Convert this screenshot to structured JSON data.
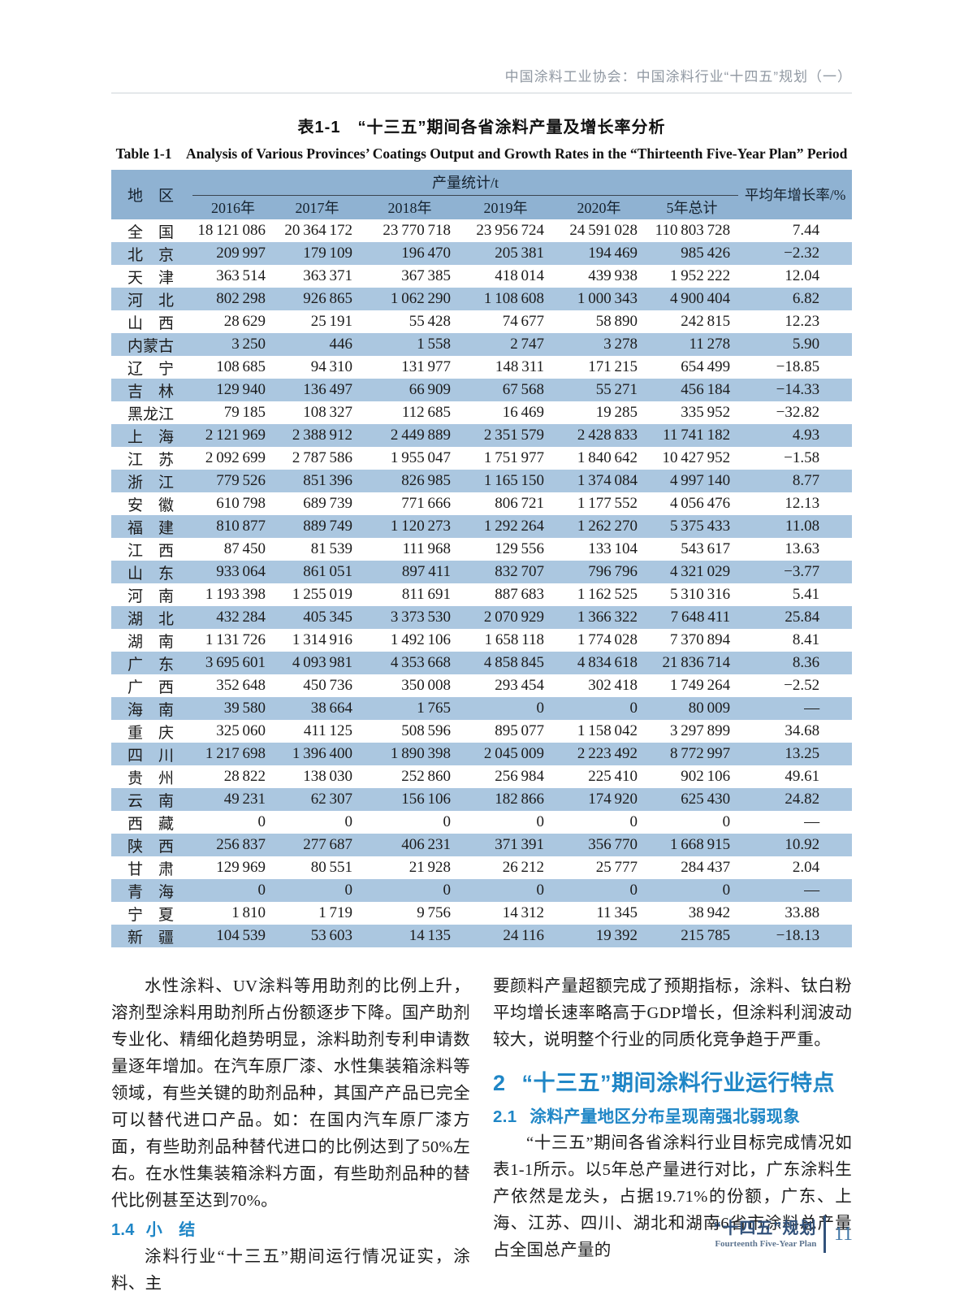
{
  "colors": {
    "band": "#8fb2d2",
    "stripe": "#abc7e0",
    "heading-blue": "#1f86c6",
    "footer-navy": "#32527b",
    "page-blue": "#4076a6",
    "header-gray": "#9098a2"
  },
  "page": {
    "running_header": "中国涂料工业协会：中国涂料行业“十四五”规划（一）"
  },
  "table": {
    "title_zh": "表1-1　“十三五”期间各省涂料产量及增长率分析",
    "title_en": "Table 1-1　Analysis of Various Provinces’ Coatings Output and Growth Rates in the “Thirteenth Five-Year Plan” Period",
    "region_label": "地　区",
    "group_label": "产量统计/t",
    "rate_label": "平均年增长率/%",
    "year_labels": [
      "2016年",
      "2017年",
      "2018年",
      "2019年",
      "2020年",
      "5年总计"
    ],
    "rows": [
      {
        "name": "全国",
        "values": [
          18121086,
          20364172,
          23770718,
          23956724,
          24591028,
          110803728
        ],
        "rate": "7.44"
      },
      {
        "name": "北京",
        "values": [
          209997,
          179109,
          196470,
          205381,
          194469,
          985426
        ],
        "rate": "−2.32"
      },
      {
        "name": "天津",
        "values": [
          363514,
          363371,
          367385,
          418014,
          439938,
          1952222
        ],
        "rate": "12.04"
      },
      {
        "name": "河北",
        "values": [
          802298,
          926865,
          1062290,
          1108608,
          1000343,
          4900404
        ],
        "rate": "6.82"
      },
      {
        "name": "山西",
        "values": [
          28629,
          25191,
          55428,
          74677,
          58890,
          242815
        ],
        "rate": "12.23"
      },
      {
        "name": "内蒙古",
        "values": [
          3250,
          446,
          1558,
          2747,
          3278,
          11278
        ],
        "rate": "5.90"
      },
      {
        "name": "辽宁",
        "values": [
          108685,
          94310,
          131977,
          148311,
          171215,
          654499
        ],
        "rate": "−18.85"
      },
      {
        "name": "吉林",
        "values": [
          129940,
          136497,
          66909,
          67568,
          55271,
          456184
        ],
        "rate": "−14.33"
      },
      {
        "name": "黑龙江",
        "values": [
          79185,
          108327,
          112685,
          16469,
          19285,
          335952
        ],
        "rate": "−32.82"
      },
      {
        "name": "上海",
        "values": [
          2121969,
          2388912,
          2449889,
          2351579,
          2428833,
          11741182
        ],
        "rate": "4.93"
      },
      {
        "name": "江苏",
        "values": [
          2092699,
          2787586,
          1955047,
          1751977,
          1840642,
          10427952
        ],
        "rate": "−1.58"
      },
      {
        "name": "浙江",
        "values": [
          779526,
          851396,
          826985,
          1165150,
          1374084,
          4997140
        ],
        "rate": "8.77"
      },
      {
        "name": "安徽",
        "values": [
          610798,
          689739,
          771666,
          806721,
          1177552,
          4056476
        ],
        "rate": "12.13"
      },
      {
        "name": "福建",
        "values": [
          810877,
          889749,
          1120273,
          1292264,
          1262270,
          5375433
        ],
        "rate": "11.08"
      },
      {
        "name": "江西",
        "values": [
          87450,
          81539,
          111968,
          129556,
          133104,
          543617
        ],
        "rate": "13.63"
      },
      {
        "name": "山东",
        "values": [
          933064,
          861051,
          897411,
          832707,
          796796,
          4321029
        ],
        "rate": "−3.77"
      },
      {
        "name": "河南",
        "values": [
          1193398,
          1255019,
          811691,
          887683,
          1162525,
          5310316
        ],
        "rate": "5.41"
      },
      {
        "name": "湖北",
        "values": [
          432284,
          405345,
          3373530,
          2070929,
          1366322,
          7648411
        ],
        "rate": "25.84"
      },
      {
        "name": "湖南",
        "values": [
          1131726,
          1314916,
          1492106,
          1658118,
          1774028,
          7370894
        ],
        "rate": "8.41"
      },
      {
        "name": "广东",
        "values": [
          3695601,
          4093981,
          4353668,
          4858845,
          4834618,
          21836714
        ],
        "rate": "8.36"
      },
      {
        "name": "广西",
        "values": [
          352648,
          450736,
          350008,
          293454,
          302418,
          1749264
        ],
        "rate": "−2.52"
      },
      {
        "name": "海南",
        "values": [
          39580,
          38664,
          1765,
          0,
          0,
          80009
        ],
        "rate": "—"
      },
      {
        "name": "重庆",
        "values": [
          325060,
          411125,
          508596,
          895077,
          1158042,
          3297899
        ],
        "rate": "34.68"
      },
      {
        "name": "四川",
        "values": [
          1217698,
          1396400,
          1890398,
          2045009,
          2223492,
          8772997
        ],
        "rate": "13.25"
      },
      {
        "name": "贵州",
        "values": [
          28822,
          138030,
          252860,
          256984,
          225410,
          902106
        ],
        "rate": "49.61"
      },
      {
        "name": "云南",
        "values": [
          49231,
          62307,
          156106,
          182866,
          174920,
          625430
        ],
        "rate": "24.82"
      },
      {
        "name": "西藏",
        "values": [
          0,
          0,
          0,
          0,
          0,
          0
        ],
        "rate": "—"
      },
      {
        "name": "陕西",
        "values": [
          256837,
          277687,
          406231,
          371391,
          356770,
          1668915
        ],
        "rate": "10.92"
      },
      {
        "name": "甘肃",
        "values": [
          129969,
          80551,
          21928,
          26212,
          25777,
          284437
        ],
        "rate": "2.04"
      },
      {
        "name": "青海",
        "values": [
          0,
          0,
          0,
          0,
          0,
          0
        ],
        "rate": "—"
      },
      {
        "name": "宁夏",
        "values": [
          1810,
          1719,
          9756,
          14312,
          11345,
          38942
        ],
        "rate": "33.88"
      },
      {
        "name": "新疆",
        "values": [
          104539,
          53603,
          14135,
          24116,
          19392,
          215785
        ],
        "rate": "−18.13"
      }
    ]
  },
  "left_column": {
    "p1": "水性涂料、UV涂料等用助剂的比例上升，溶剂型涂料用助剂所占份额逐步下降。国产助剂专业化、精细化趋势明显，涂料助剂专利申请数量逐年增加。在汽车原厂漆、水性集装箱涂料等领域，有些关键的助剂品种，其国产产品已完全可以替代进口产品。如：在国内汽车原厂漆方面，有些助剂品种替代进口的比例达到了50%左右。在水性集装箱涂料方面，有些助剂品种的替代比例甚至达到70%。",
    "heading_1_4": {
      "number": "1.4",
      "title": "小　结"
    },
    "p2": "涂料行业“十三五”期间运行情况证实，涂料、主"
  },
  "right_column": {
    "p1": "要颜料产量超额完成了预期指标，涂料、钛白粉平均增长速率略高于GDP增长，但涂料利润波动较大，说明整个行业的同质化竞争趋于严重。",
    "heading_2": {
      "number": "2",
      "title": "“十三五”期间涂料行业运行特点"
    },
    "heading_2_1": {
      "number": "2.1",
      "title": "涂料产量地区分布呈现南强北弱现象"
    },
    "p2": "“十三五”期间各省涂料行业目标完成情况如表1-1所示。以5年总产量进行对比，广东涂料生产依然是龙头，占据19.71%的份额，广东、上海、江苏、四川、湖北和湖南6省市涂料总产量占全国总产量的"
  },
  "footer": {
    "plan_zh": "“十四五”规划",
    "plan_en": "Fourteenth Five-Year Plan",
    "page_number": "11"
  }
}
